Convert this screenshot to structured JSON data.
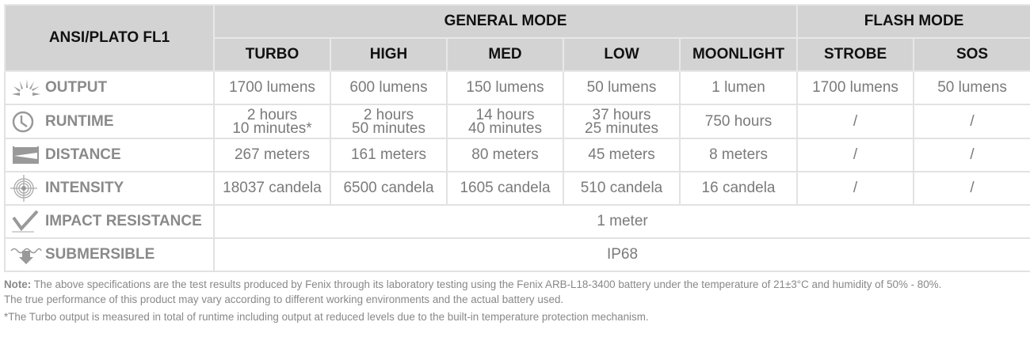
{
  "header": {
    "standard": "ANSI/PLATO FL1",
    "general_mode": "GENERAL MODE",
    "flash_mode": "FLASH MODE",
    "modes": [
      "TURBO",
      "HIGH",
      "MED",
      "LOW",
      "MOONLIGHT",
      "STROBE",
      "SOS"
    ]
  },
  "rows": {
    "output": {
      "label": "OUTPUT",
      "icon": "light-rays-icon",
      "values": [
        "1700 lumens",
        "600 lumens",
        "150 lumens",
        "50 lumens",
        "1 lumen",
        "1700 lumens",
        "50 lumens"
      ]
    },
    "runtime": {
      "label": "RUNTIME",
      "icon": "clock-icon",
      "values": [
        [
          "2 hours",
          "10 minutes*"
        ],
        [
          "2 hours",
          "50 minutes"
        ],
        [
          "14 hours",
          "40 minutes"
        ],
        [
          "37 hours",
          "25 minutes"
        ],
        [
          "750 hours"
        ],
        [
          "/"
        ],
        [
          "/"
        ]
      ]
    },
    "distance": {
      "label": "DISTANCE",
      "icon": "distance-icon",
      "values": [
        "267 meters",
        "161 meters",
        "80 meters",
        "45 meters",
        "8 meters",
        "/",
        "/"
      ]
    },
    "intensity": {
      "label": "INTENSITY",
      "icon": "target-icon",
      "values": [
        "18037 candela",
        "6500 candela",
        "1605 candela",
        "510 candela",
        "16 candela",
        "/",
        "/"
      ]
    },
    "impact": {
      "label": "IMPACT RESISTANCE",
      "icon": "impact-icon",
      "value": "1 meter"
    },
    "submersible": {
      "label": "SUBMERSIBLE",
      "icon": "water-icon",
      "value": "IP68"
    }
  },
  "notes": {
    "note_label": "Note:",
    "line1": " The above specifications are the test results produced by Fenix through its laboratory testing using the Fenix ARB-L18-3400 battery under the temperature of 21±3°C and humidity of 50% - 80%.",
    "line2": "The true performance of this product may vary according to different working environments and the actual battery used.",
    "footnote": "*The Turbo output is measured in total of runtime including output at reduced levels due to the built-in temperature protection mechanism."
  }
}
